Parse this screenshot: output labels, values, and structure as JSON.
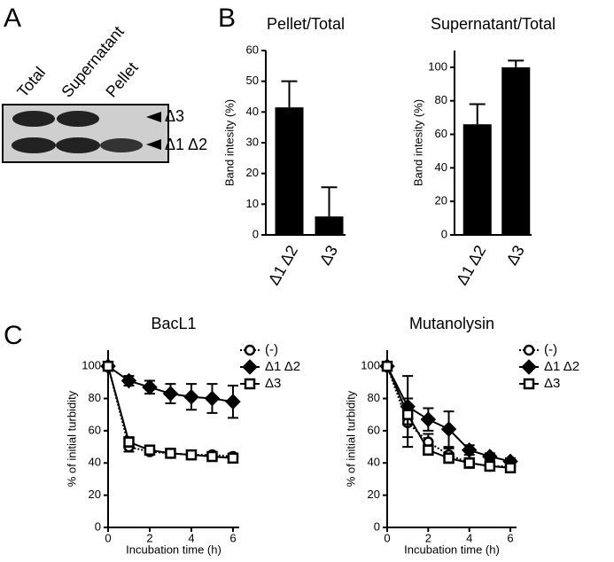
{
  "panel_labels": [
    "A",
    "B",
    "C"
  ],
  "gel": {
    "lanes": [
      "Total",
      "Supernatant",
      "Pellet"
    ],
    "bands": [
      "Δ3",
      "Δ1 Δ2"
    ]
  },
  "chart_data": [
    {
      "type": "bar",
      "title": "Pellet/Total",
      "y_label": "Band intesity (%)",
      "categories": [
        "Δ1 Δ2",
        "Δ3"
      ],
      "values": [
        41.5,
        6
      ],
      "errors": [
        8.5,
        9.5
      ],
      "color": "#000000",
      "ylim": [
        0,
        60
      ],
      "yticks": [
        0,
        10,
        20,
        30,
        40,
        50,
        60
      ]
    },
    {
      "type": "bar",
      "title": "Supernatant/Total",
      "y_label": "Band intesity (%)",
      "categories": [
        "Δ1 Δ2",
        "Δ3"
      ],
      "values": [
        66,
        100
      ],
      "errors": [
        12,
        4
      ],
      "color": "#000000",
      "ylim": [
        0,
        110
      ],
      "yticks": [
        0,
        20,
        40,
        60,
        80,
        100
      ]
    },
    {
      "type": "line",
      "title": "BacL1",
      "x_label": "Incubation time (h)",
      "y_label": "% of initial turbidity",
      "x": [
        0,
        1,
        2,
        3,
        4,
        5,
        6
      ],
      "xlim": [
        0,
        6.3
      ],
      "xticks": [
        0,
        2,
        4,
        6
      ],
      "ylim": [
        0,
        110
      ],
      "yticks": [
        0,
        20,
        40,
        60,
        80,
        100
      ],
      "series": [
        {
          "name": "(-)",
          "color": "#000000",
          "marker": "circle",
          "linestyle": "dotted",
          "values": [
            100,
            50,
            47,
            46,
            45,
            45,
            44
          ],
          "errors": [
            0,
            3,
            2,
            2,
            1,
            1,
            1
          ]
        },
        {
          "name": "Δ1 Δ2",
          "color": "#000000",
          "marker": "diamond",
          "linestyle": "solid",
          "values": [
            100,
            91,
            87,
            83,
            81,
            80,
            78
          ],
          "errors": [
            0,
            3,
            4,
            6,
            8,
            9,
            10
          ]
        },
        {
          "name": "Δ3",
          "color": "#000000",
          "marker": "square",
          "linestyle": "solid",
          "values": [
            100,
            53,
            48,
            46,
            45,
            44,
            43
          ],
          "errors": [
            0,
            3,
            2,
            2,
            1,
            1,
            1
          ]
        }
      ]
    },
    {
      "type": "line",
      "title": "Mutanolysin",
      "x_label": "Incubation time (h)",
      "y_label": "% of initial turbidity",
      "x": [
        0,
        1,
        2,
        3,
        4,
        5,
        6
      ],
      "xlim": [
        0,
        6.3
      ],
      "xticks": [
        0,
        2,
        4,
        6
      ],
      "ylim": [
        0,
        110
      ],
      "yticks": [
        0,
        20,
        40,
        60,
        80,
        100
      ],
      "series": [
        {
          "name": "(-)",
          "color": "#000000",
          "marker": "circle",
          "linestyle": "dotted",
          "values": [
            100,
            65,
            53,
            45,
            40,
            38,
            38
          ],
          "errors": [
            0,
            15,
            5,
            4,
            3,
            2,
            2
          ]
        },
        {
          "name": "Δ1 Δ2",
          "color": "#000000",
          "marker": "diamond",
          "linestyle": "solid",
          "values": [
            100,
            75,
            67,
            61,
            48,
            44,
            41
          ],
          "errors": [
            0,
            19,
            7,
            11,
            3,
            2,
            2
          ]
        },
        {
          "name": "Δ3",
          "color": "#000000",
          "marker": "square",
          "linestyle": "solid",
          "values": [
            100,
            70,
            48,
            43,
            40,
            38,
            37
          ],
          "errors": [
            0,
            6,
            3,
            3,
            3,
            2,
            2
          ]
        }
      ]
    }
  ]
}
